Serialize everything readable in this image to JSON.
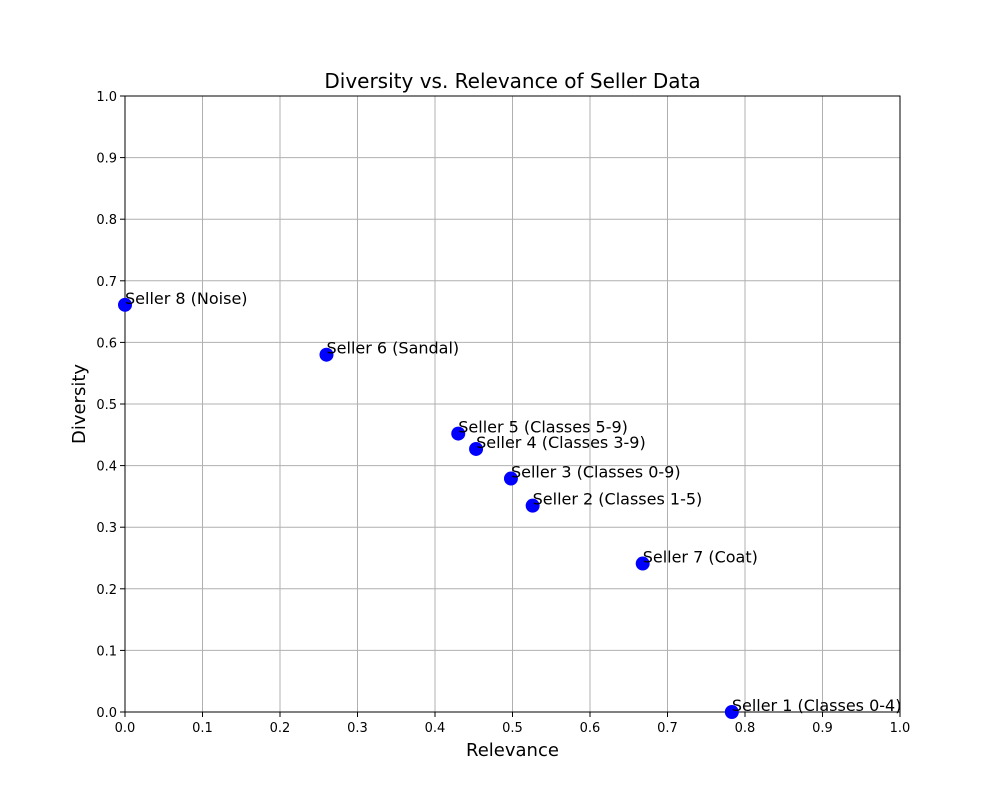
{
  "chart_data": {
    "type": "scatter",
    "title": "Diversity vs. Relevance of Seller Data",
    "xlabel": "Relevance",
    "ylabel": "Diversity",
    "xlim": [
      0.0,
      1.0
    ],
    "ylim": [
      0.0,
      1.0
    ],
    "xticks": [
      "0.0",
      "0.1",
      "0.2",
      "0.3",
      "0.4",
      "0.5",
      "0.6",
      "0.7",
      "0.8",
      "0.9",
      "1.0"
    ],
    "yticks": [
      "0.0",
      "0.1",
      "0.2",
      "0.3",
      "0.4",
      "0.5",
      "0.6",
      "0.7",
      "0.8",
      "0.9",
      "1.0"
    ],
    "grid": true,
    "marker_color": "#0000ff",
    "points": [
      {
        "label": "Seller 1 (Classes 0-4)",
        "x": 0.783,
        "y": 0.0
      },
      {
        "label": "Seller 2 (Classes 1-5)",
        "x": 0.526,
        "y": 0.335
      },
      {
        "label": "Seller 3 (Classes 0-9)",
        "x": 0.498,
        "y": 0.379
      },
      {
        "label": "Seller 4 (Classes 3-9)",
        "x": 0.453,
        "y": 0.427
      },
      {
        "label": "Seller 5 (Classes 5-9)",
        "x": 0.43,
        "y": 0.452
      },
      {
        "label": "Seller 6 (Sandal)",
        "x": 0.26,
        "y": 0.58
      },
      {
        "label": "Seller 7 (Coat)",
        "x": 0.668,
        "y": 0.241
      },
      {
        "label": "Seller 8 (Noise)",
        "x": 0.0,
        "y": 0.661
      }
    ]
  }
}
